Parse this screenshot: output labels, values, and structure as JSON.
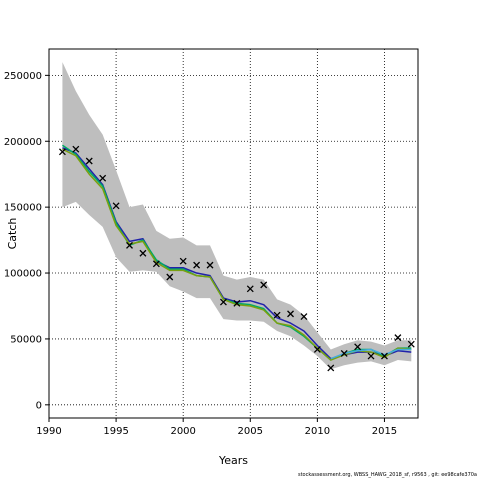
{
  "chart_data": {
    "type": "line",
    "title": "",
    "xlabel": "Years",
    "ylabel": "Catch",
    "xlim": [
      1990,
      2017.5
    ],
    "ylim": [
      -10000,
      270000
    ],
    "x_ticks": [
      1990,
      1995,
      2000,
      2005,
      2010,
      2015
    ],
    "y_ticks": [
      0,
      50000,
      100000,
      150000,
      200000,
      250000
    ],
    "grid": true,
    "grid_style": "dotted",
    "legend": "none",
    "x": [
      1991,
      1992,
      1993,
      1994,
      1995,
      1996,
      1997,
      1998,
      1999,
      2000,
      2001,
      2002,
      2003,
      2004,
      2005,
      2006,
      2007,
      2008,
      2009,
      2010,
      2011,
      2012,
      2013,
      2014,
      2015,
      2016,
      2017
    ],
    "band": {
      "color": "#bebebe",
      "upper": [
        260000,
        238000,
        220000,
        205000,
        178000,
        150000,
        152000,
        132000,
        126000,
        127000,
        121000,
        121000,
        98000,
        95000,
        97000,
        95000,
        80000,
        76000,
        68000,
        55000,
        42000,
        46000,
        49000,
        48000,
        45000,
        49000,
        49000
      ],
      "lower": [
        150000,
        154000,
        144000,
        135000,
        112000,
        101000,
        102000,
        101000,
        90000,
        86000,
        81000,
        81000,
        65000,
        64000,
        64000,
        63000,
        56000,
        52000,
        45000,
        37000,
        27000,
        30000,
        32000,
        33000,
        30000,
        34000,
        33000
      ]
    },
    "series": [
      {
        "color": "#2222aa",
        "values": [
          195000,
          191000,
          179000,
          167000,
          139000,
          124000,
          126000,
          109000,
          104000,
          104000,
          100000,
          98000,
          81000,
          78000,
          79000,
          76000,
          66000,
          62000,
          56000,
          45000,
          35000,
          38000,
          40000,
          40000,
          37000,
          41000,
          40000
        ]
      },
      {
        "color": "#00aa66",
        "values": [
          197000,
          190000,
          177000,
          166000,
          138000,
          121000,
          125000,
          110000,
          103000,
          103000,
          98000,
          97000,
          80000,
          77000,
          76000,
          73000,
          62000,
          59000,
          52000,
          43000,
          34000,
          39000,
          42000,
          42000,
          37000,
          43000,
          43000
        ]
      },
      {
        "color": "#7aa010",
        "values": [
          194000,
          189000,
          175000,
          164000,
          136000,
          122000,
          124000,
          108000,
          102000,
          102000,
          98000,
          97000,
          80000,
          76000,
          75000,
          72000,
          62000,
          60000,
          53000,
          43000,
          34000,
          38000,
          41000,
          40000,
          36000,
          43000,
          42000
        ]
      },
      {
        "color": "#44aadd",
        "values": [
          null,
          null,
          null,
          null,
          null,
          null,
          null,
          null,
          null,
          null,
          null,
          null,
          null,
          null,
          null,
          null,
          null,
          null,
          null,
          null,
          35000,
          39000,
          41000,
          42000,
          38000,
          42000,
          42000
        ]
      }
    ],
    "observed": {
      "marker": "x",
      "color": "#000000",
      "values": [
        192000,
        194000,
        185000,
        172000,
        151000,
        121000,
        115000,
        107000,
        97000,
        109000,
        106000,
        106000,
        78000,
        77000,
        88000,
        91000,
        68000,
        69000,
        67000,
        42000,
        28000,
        39000,
        44000,
        37000,
        37000,
        51000,
        46000
      ]
    }
  },
  "footer": "stockassessment.org, WBSS_HAWG_2018_sf, r9563 , git: ee98cafe370a"
}
